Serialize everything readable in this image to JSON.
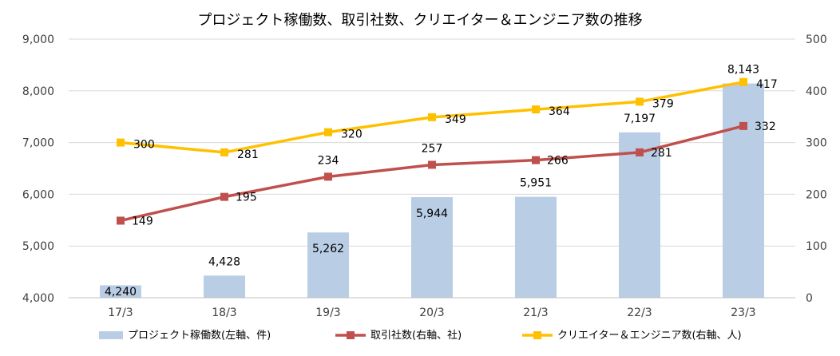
{
  "chart_data": {
    "type": "bar+line",
    "title": "プロジェクト稼働数、取引社数、クリエイター＆エンジニア数の推移",
    "categories": [
      "17/3",
      "18/3",
      "19/3",
      "20/3",
      "21/3",
      "22/3",
      "23/3"
    ],
    "left_axis": {
      "ylim": [
        4000,
        9000
      ],
      "ticks": [
        "4,000",
        "5,000",
        "6,000",
        "7,000",
        "8,000",
        "9,000"
      ]
    },
    "right_axis": {
      "ylim": [
        0,
        500
      ],
      "ticks": [
        "0",
        "100",
        "200",
        "300",
        "400",
        "500"
      ]
    },
    "grid": true,
    "legend_position": "bottom",
    "series": [
      {
        "name": "プロジェクト稼働数(左軸、件)",
        "type": "bar",
        "axis": "left",
        "color": "#b9cde5",
        "values": [
          4240,
          4428,
          5262,
          5944,
          5951,
          7197,
          8143
        ],
        "labels": [
          "4,240",
          "4,428",
          "5,262",
          "5,944",
          "5,951",
          "7,197",
          "8,143"
        ]
      },
      {
        "name": "取引社数(右軸、社)",
        "type": "line",
        "axis": "right",
        "color": "#c0504d",
        "marker": "square",
        "values": [
          149,
          195,
          234,
          257,
          266,
          281,
          332
        ],
        "labels": [
          "149",
          "195",
          "234",
          "257",
          "266",
          "281",
          "332"
        ]
      },
      {
        "name": "クリエイター＆エンジニア数(右軸、人)",
        "type": "line",
        "axis": "right",
        "color": "#ffc000",
        "marker": "square",
        "values": [
          300,
          281,
          320,
          349,
          364,
          379,
          417
        ],
        "labels": [
          "300",
          "281",
          "320",
          "349",
          "364",
          "379",
          "417"
        ]
      }
    ]
  }
}
